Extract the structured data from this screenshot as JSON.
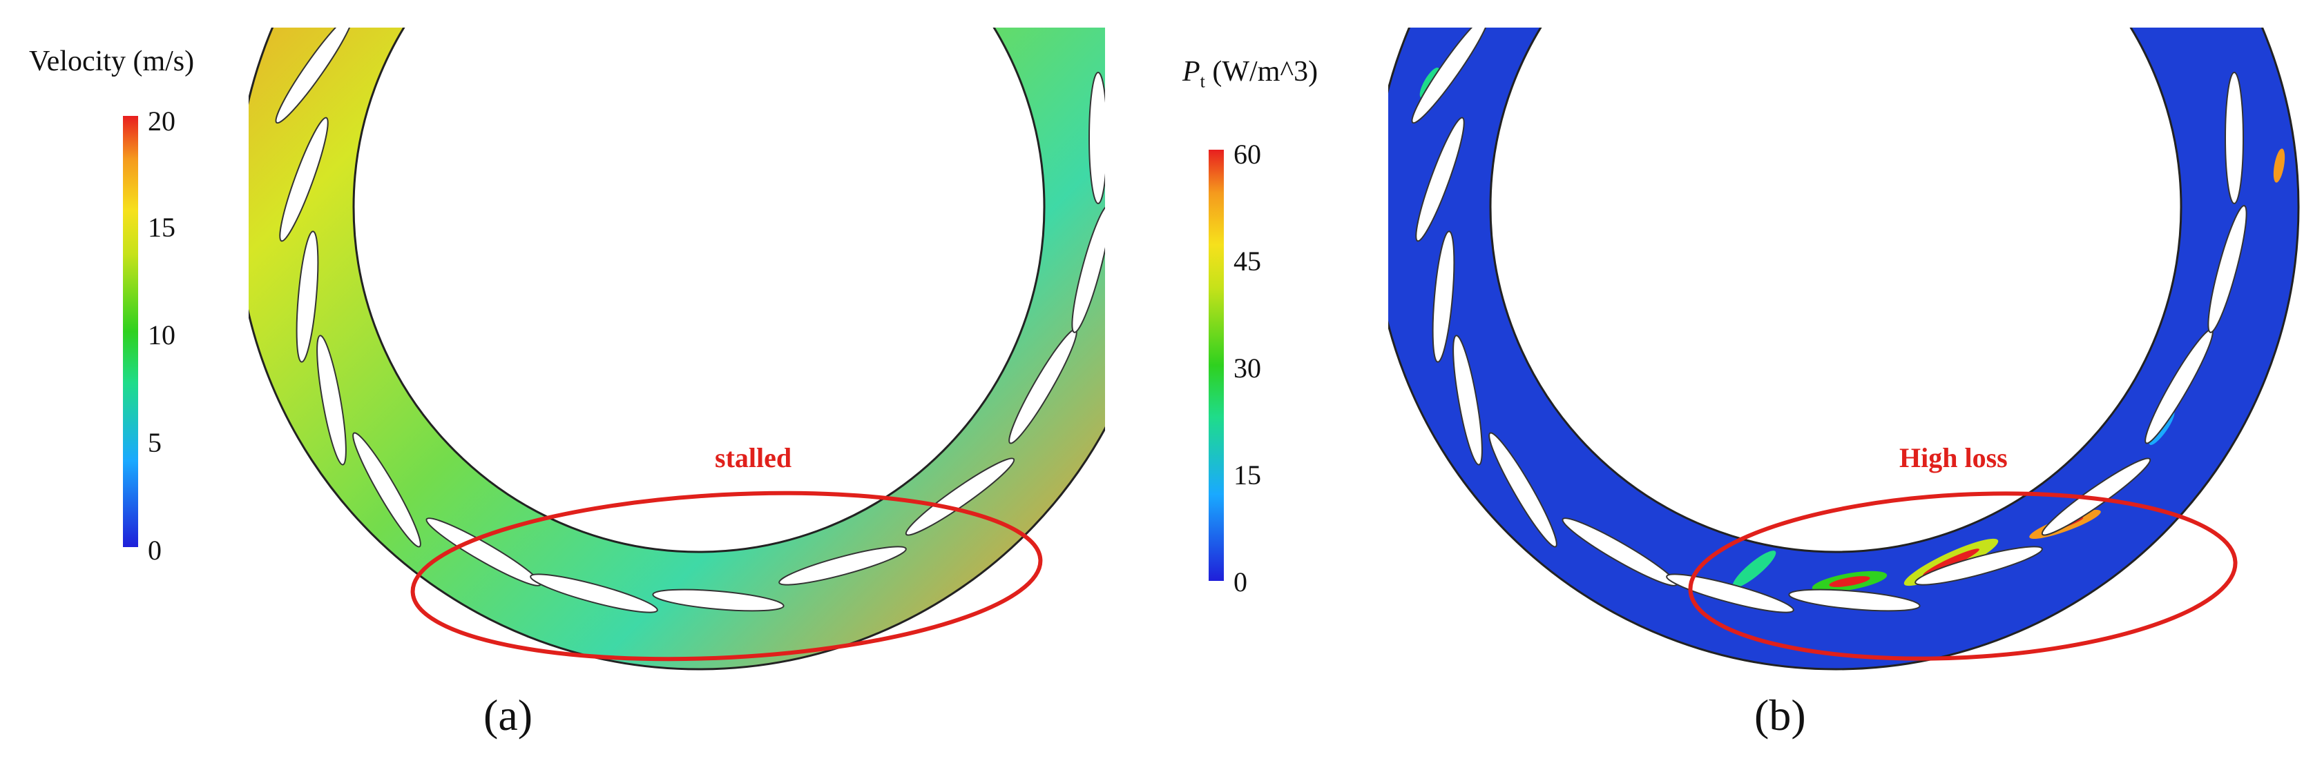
{
  "panels": [
    {
      "label": "(a)",
      "colorbar": {
        "title": "Velocity  (m/s)",
        "ticks": [
          "20",
          "15",
          "10",
          "5",
          "0"
        ],
        "min": 0,
        "max": 20
      },
      "annotation": "stalled"
    },
    {
      "label": "(b)",
      "colorbar": {
        "title_symbol": "P",
        "title_subscript": "t",
        "title_unit": " (W/m^3)",
        "ticks": [
          "60",
          "45",
          "30",
          "15",
          "0"
        ],
        "min": 0,
        "max": 60
      },
      "annotation": "High loss"
    }
  ],
  "colors": {
    "jet": [
      "#1f1fd9",
      "#1aa9ff",
      "#1fdc8a",
      "#2fd11f",
      "#c6e21a",
      "#f6e11c",
      "#f59a1d",
      "#e81f1f"
    ],
    "highlight": "#e0201b",
    "low_field": "#1d3fd6"
  }
}
